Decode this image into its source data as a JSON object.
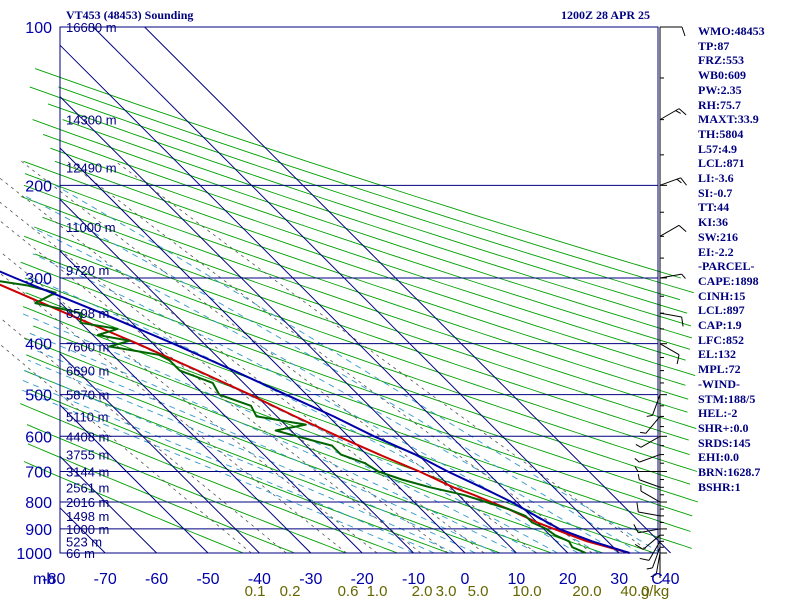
{
  "header": {
    "station": "VT453 (48453) Sounding",
    "time": "1200Z 28 APR 25"
  },
  "stats": [
    "WMO:48453",
    "TP:87",
    "FRZ:553",
    "WB0:609",
    "PW:2.35",
    "RH:75.7",
    "MAXT:33.9",
    "TH:5804",
    "L57:4.9",
    "LCL:871",
    "LI:-3.6",
    "SI:-0.7",
    "TT:44",
    "KI:36",
    "SW:216",
    "EI:-2.2",
    "-PARCEL-",
    "CAPE:1898",
    "CINH:15",
    "LCL:897",
    "CAP:1.9",
    "LFC:852",
    "EL:132",
    "MPL:72",
    "-WIND-",
    "STM:188/5",
    "HEL:-2",
    "SHR+:0.0",
    "SRDS:145",
    "EHI:0.0",
    "BRN:1628.7",
    "BSHR:1"
  ],
  "colors": {
    "grid": "#000080",
    "axis_label": "#0000aa",
    "dry_adiabat": "#00a000",
    "moist_adiabat": "#3399cc",
    "mixing_ratio": "#555555",
    "temperature": "#cc0000",
    "dewpoint": "#006400",
    "parcel": "#0000aa",
    "mixing_label": "#666600",
    "wind_axis": "#000000"
  },
  "chart_data": {
    "type": "line",
    "title": "VT453 (48453) Sounding",
    "y_axis": {
      "unit": "mb",
      "scale": "log",
      "range": [
        100,
        1000
      ]
    },
    "x_axis": {
      "unit": "°C",
      "range": [
        -80,
        40
      ],
      "skewed": true
    },
    "pressure_levels": [
      100,
      200,
      300,
      400,
      500,
      600,
      700,
      800,
      900,
      1000
    ],
    "pressure_tick_labels": [
      "100",
      "200",
      "300",
      "400",
      "500",
      "600",
      "700",
      "800",
      "900",
      "1000"
    ],
    "x_tick_labels": [
      "mb",
      "-80",
      "-70",
      "-60",
      "-50",
      "-40",
      "-30",
      "-20",
      "-10",
      "0",
      "10",
      "20",
      "30",
      "40",
      "C"
    ],
    "height_labels": [
      {
        "p": 100,
        "text": "16680 m"
      },
      {
        "p": 150,
        "text": "14300 m"
      },
      {
        "p": 185,
        "text": "12490 m"
      },
      {
        "p": 240,
        "text": "11000 m"
      },
      {
        "p": 290,
        "text": "9720 m"
      },
      {
        "p": 350,
        "text": "8598 m"
      },
      {
        "p": 405,
        "text": "7600 m"
      },
      {
        "p": 450,
        "text": "6690 m"
      },
      {
        "p": 500,
        "text": "5870 m"
      },
      {
        "p": 550,
        "text": "5110 m"
      },
      {
        "p": 600,
        "text": "4408 m"
      },
      {
        "p": 650,
        "text": "3755 m"
      },
      {
        "p": 700,
        "text": "3144 m"
      },
      {
        "p": 750,
        "text": "2561 m"
      },
      {
        "p": 800,
        "text": "2016 m"
      },
      {
        "p": 850,
        "text": "1498 m"
      },
      {
        "p": 900,
        "text": "1000 m"
      },
      {
        "p": 950,
        "text": "523 m"
      },
      {
        "p": 1000,
        "text": "66 m"
      }
    ],
    "mixing_ratio_labels": [
      "0.1",
      "0.2",
      "0.6",
      "1.0",
      "2.0",
      "3.0",
      "5.0",
      "10.0",
      "20.0",
      "40.0",
      "g/kg"
    ],
    "series": [
      {
        "name": "temperature",
        "points": [
          [
            1000,
            32
          ],
          [
            975,
            29
          ],
          [
            950,
            26
          ],
          [
            925,
            24
          ],
          [
            900,
            22
          ],
          [
            875,
            20
          ],
          [
            850,
            18.5
          ],
          [
            825,
            17
          ],
          [
            800,
            15
          ],
          [
            775,
            13
          ],
          [
            750,
            10.5
          ],
          [
            700,
            7
          ],
          [
            650,
            2.5
          ],
          [
            600,
            -2
          ],
          [
            550,
            -6.5
          ],
          [
            500,
            -11
          ],
          [
            450,
            -16.5
          ],
          [
            400,
            -23
          ],
          [
            350,
            -31
          ],
          [
            300,
            -40
          ],
          [
            250,
            -50
          ],
          [
            200,
            -58
          ],
          [
            150,
            -66
          ],
          [
            100,
            -80
          ]
        ]
      },
      {
        "name": "dewpoint",
        "points": [
          [
            1000,
            23.5
          ],
          [
            975,
            22
          ],
          [
            950,
            22.5
          ],
          [
            925,
            21
          ],
          [
            900,
            20.5
          ],
          [
            875,
            19
          ],
          [
            850,
            19
          ],
          [
            825,
            17
          ],
          [
            800,
            14
          ],
          [
            775,
            11
          ],
          [
            750,
            6
          ],
          [
            725,
            2
          ],
          [
            700,
            -1
          ],
          [
            675,
            -2
          ],
          [
            650,
            -5
          ],
          [
            625,
            -5
          ],
          [
            600,
            -10
          ],
          [
            585,
            -13
          ],
          [
            570,
            -6
          ],
          [
            550,
            -14
          ],
          [
            525,
            -13
          ],
          [
            500,
            -17
          ],
          [
            475,
            -16
          ],
          [
            450,
            -20
          ],
          [
            430,
            -20
          ],
          [
            420,
            -21
          ],
          [
            405,
            -29
          ],
          [
            395,
            -24
          ],
          [
            385,
            -29
          ],
          [
            375,
            -24
          ],
          [
            365,
            -30
          ],
          [
            350,
            -28
          ],
          [
            335,
            -35
          ],
          [
            320,
            -29
          ],
          [
            310,
            -33
          ],
          [
            300,
            -41
          ],
          [
            290,
            -37
          ],
          [
            275,
            -39
          ],
          [
            260,
            -44
          ],
          [
            250,
            -52
          ],
          [
            240,
            -58
          ],
          [
            225,
            -67
          ],
          [
            210,
            -64
          ],
          [
            200,
            -66
          ],
          [
            180,
            -62
          ],
          [
            160,
            -67
          ],
          [
            140,
            -75
          ],
          [
            100,
            -92
          ]
        ]
      },
      {
        "name": "parcel",
        "points": [
          [
            1000,
            32
          ],
          [
            950,
            27
          ],
          [
            900,
            23
          ],
          [
            850,
            21
          ],
          [
            800,
            19
          ],
          [
            750,
            16
          ],
          [
            700,
            12.5
          ],
          [
            650,
            9.5
          ],
          [
            600,
            5
          ],
          [
            550,
            1
          ],
          [
            500,
            -4
          ],
          [
            450,
            -9.5
          ],
          [
            400,
            -16
          ],
          [
            350,
            -24
          ],
          [
            300,
            -34
          ],
          [
            250,
            -45
          ],
          [
            200,
            -56
          ],
          [
            150,
            -67
          ],
          [
            100,
            -83
          ]
        ]
      }
    ],
    "wind_barbs": [
      {
        "p": 1000,
        "dir": 190,
        "spd": 5
      },
      {
        "p": 975,
        "dir": 200,
        "spd": 5
      },
      {
        "p": 950,
        "dir": 210,
        "spd": 10
      },
      {
        "p": 925,
        "dir": 230,
        "spd": 10
      },
      {
        "p": 900,
        "dir": 260,
        "spd": 10
      },
      {
        "p": 850,
        "dir": 280,
        "spd": 10
      },
      {
        "p": 800,
        "dir": 300,
        "spd": 5
      },
      {
        "p": 750,
        "dir": 290,
        "spd": 5
      },
      {
        "p": 700,
        "dir": 270,
        "spd": 5
      },
      {
        "p": 650,
        "dir": 250,
        "spd": 5
      },
      {
        "p": 600,
        "dir": 240,
        "spd": 5
      },
      {
        "p": 550,
        "dir": 220,
        "spd": 5
      },
      {
        "p": 500,
        "dir": 200,
        "spd": 5
      },
      {
        "p": 400,
        "dir": 120,
        "spd": 10
      },
      {
        "p": 350,
        "dir": 100,
        "spd": 10
      },
      {
        "p": 300,
        "dir": 80,
        "spd": 5
      },
      {
        "p": 250,
        "dir": 60,
        "spd": 10
      },
      {
        "p": 200,
        "dir": 70,
        "spd": 15
      },
      {
        "p": 150,
        "dir": 60,
        "spd": 15
      },
      {
        "p": 100,
        "dir": 90,
        "spd": 10
      }
    ]
  }
}
